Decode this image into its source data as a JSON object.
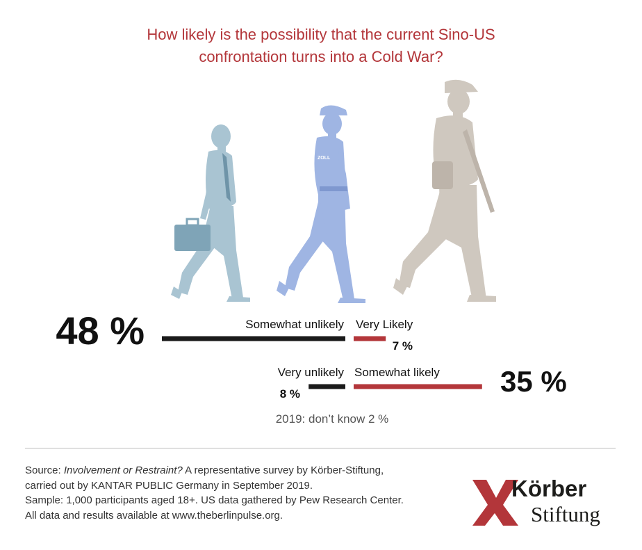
{
  "title": {
    "line1": "How likely is the possibility that the current Sino-US",
    "line2": "confrontation turns into a Cold War?"
  },
  "figures": [
    {
      "name": "businessman",
      "color": "#a9c4d2"
    },
    {
      "name": "customs officer",
      "color": "#9fb5e3",
      "badge_text": "ZOLL"
    },
    {
      "name": "soldier",
      "color": "#cfc8bf"
    }
  ],
  "chart_data": {
    "type": "bar",
    "orientation": "diverging-horizontal",
    "unlikely_color": "#1a1a1a",
    "likely_color": "#b3363a",
    "rows": [
      {
        "total_label": "48 %",
        "left": {
          "label": "Somewhat unlikely",
          "value": 40
        },
        "right": {
          "label": "Very Likely",
          "value": 7,
          "value_label": "7 %"
        }
      },
      {
        "total_label": "35 %",
        "left": {
          "label": "Very unlikely",
          "value": 8,
          "value_label": "8 %"
        },
        "right": {
          "label": "Somewhat likely",
          "value": 28
        }
      }
    ],
    "footnote": "2019: don’t know 2 %"
  },
  "source": {
    "prefix": "Source:",
    "title_italic": "Involvement or Restraint?",
    "line1_rest": "A representative survey by Körber-Stiftung,",
    "line2": "carried out by KANTAR PUBLIC Germany in September 2019.",
    "line3": "Sample: 1,000 participants aged 18+. US data gathered by Pew Research Center.",
    "line4": "All data and results available at www.theberlinpulse.org."
  },
  "logo": {
    "word1": "Körber",
    "word2": "Stiftung",
    "color": "#b3363a"
  }
}
